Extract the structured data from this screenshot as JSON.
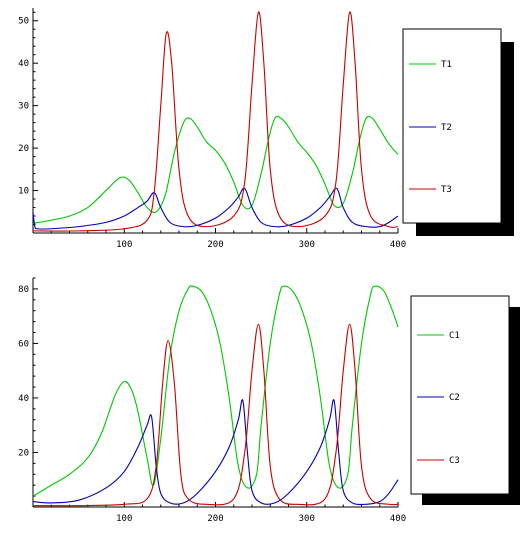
{
  "chart_data": [
    {
      "type": "line",
      "title": "",
      "xlabel": "",
      "ylabel": "",
      "xlim": [
        0,
        400
      ],
      "ylim": [
        0,
        53
      ],
      "xticks": [
        "100",
        "200",
        "300",
        "400"
      ],
      "yticks": [
        "10",
        "20",
        "30",
        "40",
        "50"
      ],
      "grid": false,
      "legend_position": "right",
      "series": [
        {
          "name": "T1",
          "color": "#00c800",
          "x": [
            0,
            20,
            40,
            60,
            80,
            95,
            105,
            115,
            125,
            135,
            145,
            155,
            165,
            172,
            180,
            190,
            200,
            210,
            220,
            230,
            240,
            250,
            258,
            265,
            272,
            280,
            290,
            300,
            310,
            320,
            330,
            340,
            350,
            358,
            365,
            372,
            380,
            390,
            400
          ],
          "y": [
            2.3,
            3.0,
            4.0,
            6.0,
            10.0,
            13.0,
            12.5,
            9.5,
            6.0,
            5.0,
            9.0,
            19.0,
            26.0,
            27.0,
            25.0,
            21.5,
            19.5,
            16.5,
            12.0,
            6.5,
            6.5,
            14.0,
            22.0,
            27.0,
            27.0,
            25.0,
            21.5,
            19.0,
            16.0,
            11.5,
            6.5,
            7.0,
            14.0,
            22.0,
            27.0,
            27.0,
            24.5,
            21.0,
            18.5
          ]
        },
        {
          "name": "T2",
          "color": "#0000b4",
          "x": [
            0,
            2,
            5,
            20,
            50,
            80,
            100,
            115,
            125,
            133,
            140,
            150,
            165,
            180,
            200,
            215,
            225,
            232,
            240,
            250,
            265,
            280,
            300,
            315,
            325,
            333,
            340,
            350,
            365,
            380,
            390,
            400
          ],
          "y": [
            5.0,
            1.5,
            1.0,
            1.0,
            1.5,
            2.5,
            4.0,
            6.0,
            7.5,
            9.5,
            6.0,
            2.5,
            1.5,
            1.8,
            3.5,
            6.0,
            8.5,
            10.5,
            6.0,
            2.5,
            1.5,
            1.8,
            3.5,
            6.0,
            8.5,
            10.5,
            6.0,
            2.5,
            1.5,
            1.5,
            2.5,
            4.0
          ]
        },
        {
          "name": "T3",
          "color": "#c80000",
          "x": [
            0,
            50,
            100,
            125,
            133,
            140,
            146,
            152,
            160,
            170,
            190,
            220,
            232,
            240,
            247,
            253,
            260,
            270,
            290,
            320,
            332,
            340,
            347,
            353,
            360,
            370,
            390,
            400
          ],
          "y": [
            0.5,
            0.5,
            1.0,
            3.0,
            10.0,
            30.0,
            47.0,
            40.0,
            15.0,
            4.0,
            1.5,
            4.0,
            12.0,
            35.0,
            52.0,
            40.0,
            15.0,
            4.0,
            1.5,
            4.0,
            12.0,
            35.0,
            52.0,
            40.0,
            15.0,
            4.0,
            1.5,
            1.5
          ]
        }
      ]
    },
    {
      "type": "line",
      "title": "",
      "xlabel": "",
      "ylabel": "",
      "xlim": [
        0,
        400
      ],
      "ylim": [
        0,
        84
      ],
      "xticks": [
        "100",
        "200",
        "300",
        "400"
      ],
      "yticks": [
        "20",
        "40",
        "60",
        "80"
      ],
      "grid": false,
      "legend_position": "right",
      "series": [
        {
          "name": "C1",
          "color": "#00c800",
          "x": [
            0,
            20,
            40,
            60,
            75,
            90,
            100,
            108,
            115,
            125,
            132,
            140,
            150,
            160,
            170,
            175,
            185,
            195,
            205,
            215,
            225,
            235,
            245,
            250,
            260,
            270,
            275,
            285,
            295,
            305,
            315,
            325,
            335,
            345,
            350,
            360,
            370,
            375,
            385,
            395,
            400
          ],
          "y": [
            4.0,
            8.0,
            12.0,
            18.0,
            27.0,
            41.0,
            46.0,
            43.0,
            35.0,
            18.0,
            8.0,
            25.0,
            55.0,
            72.0,
            80.0,
            81.0,
            79.0,
            72.0,
            60.0,
            40.0,
            15.0,
            7.0,
            12.0,
            30.0,
            60.0,
            78.0,
            81.0,
            79.0,
            72.0,
            60.0,
            40.0,
            15.0,
            7.0,
            12.0,
            30.0,
            60.0,
            78.0,
            81.0,
            79.0,
            71.0,
            66.0
          ]
        },
        {
          "name": "C2",
          "color": "#0000b4",
          "x": [
            0,
            20,
            50,
            80,
            100,
            115,
            125,
            130,
            135,
            140,
            150,
            165,
            180,
            200,
            215,
            225,
            230,
            235,
            240,
            250,
            265,
            280,
            300,
            315,
            325,
            330,
            335,
            340,
            350,
            365,
            380,
            390,
            400
          ],
          "y": [
            2.0,
            1.5,
            2.5,
            7.0,
            13.0,
            22.0,
            30.0,
            33.0,
            15.0,
            5.0,
            1.5,
            1.5,
            5.0,
            13.0,
            22.0,
            32.0,
            39.0,
            20.0,
            6.0,
            1.5,
            1.5,
            5.0,
            13.0,
            22.0,
            32.0,
            39.0,
            20.0,
            6.0,
            1.5,
            1.0,
            2.0,
            5.0,
            10.0
          ]
        },
        {
          "name": "C3",
          "color": "#c80000",
          "x": [
            0,
            50,
            100,
            125,
            135,
            142,
            148,
            155,
            162,
            170,
            190,
            220,
            232,
            240,
            247,
            253,
            260,
            270,
            290,
            320,
            332,
            340,
            347,
            353,
            360,
            370,
            390,
            400
          ],
          "y": [
            0.5,
            0.5,
            1.0,
            3.0,
            15.0,
            45.0,
            61.0,
            45.0,
            12.0,
            3.0,
            1.0,
            3.0,
            20.0,
            50.0,
            67.0,
            50.0,
            15.0,
            3.0,
            1.0,
            3.0,
            20.0,
            50.0,
            67.0,
            50.0,
            15.0,
            3.0,
            1.0,
            1.0
          ]
        }
      ]
    }
  ]
}
